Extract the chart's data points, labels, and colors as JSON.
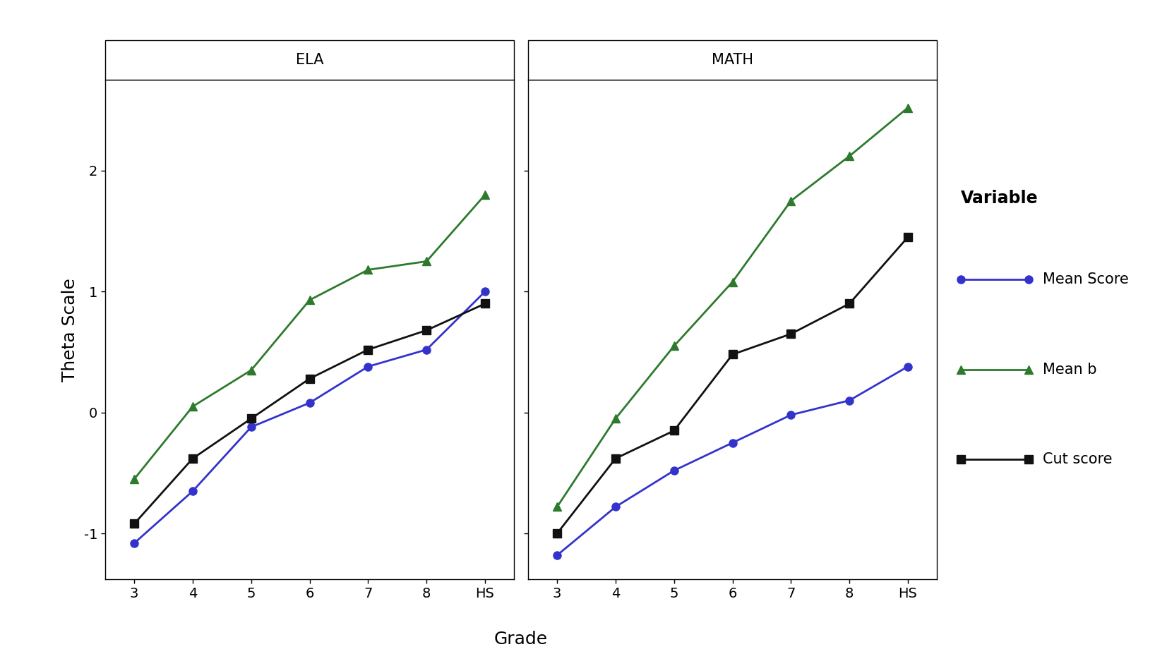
{
  "grades": [
    "3",
    "4",
    "5",
    "6",
    "7",
    "8",
    "HS"
  ],
  "ela": {
    "mean_score": [
      -1.08,
      -0.65,
      -0.12,
      0.08,
      0.38,
      0.52,
      1.0
    ],
    "mean_b": [
      -0.55,
      0.05,
      0.35,
      0.93,
      1.18,
      1.25,
      1.8
    ],
    "cut_score": [
      -0.92,
      -0.38,
      -0.05,
      0.28,
      0.52,
      0.68,
      0.9
    ]
  },
  "math": {
    "mean_score": [
      -1.18,
      -0.78,
      -0.48,
      -0.25,
      -0.02,
      0.1,
      0.38
    ],
    "mean_b": [
      -0.78,
      -0.05,
      0.55,
      1.08,
      1.75,
      2.12,
      2.52
    ],
    "cut_score": [
      -1.0,
      -0.38,
      -0.15,
      0.48,
      0.65,
      0.9,
      1.45
    ]
  },
  "colors": {
    "mean_score": "#3333cc",
    "mean_b": "#2d7a2d",
    "cut_score": "#111111"
  },
  "markers": {
    "mean_score": "o",
    "mean_b": "^",
    "cut_score": "s"
  },
  "ylabel": "Theta Scale",
  "xlabel": "Grade",
  "ylim": [
    -1.38,
    2.75
  ],
  "yticks": [
    -1,
    0,
    1,
    2
  ],
  "panel_labels": [
    "ELA",
    "MATH"
  ],
  "legend_title": "Variable",
  "legend_labels": [
    "Mean Score",
    "Mean b",
    "Cut score"
  ],
  "bg_color": "#ffffff",
  "line_width": 2.0,
  "marker_size": 8,
  "font_size_axis_label": 18,
  "font_size_tick": 14,
  "font_size_panel": 15,
  "font_size_legend_title": 17,
  "font_size_legend": 15
}
